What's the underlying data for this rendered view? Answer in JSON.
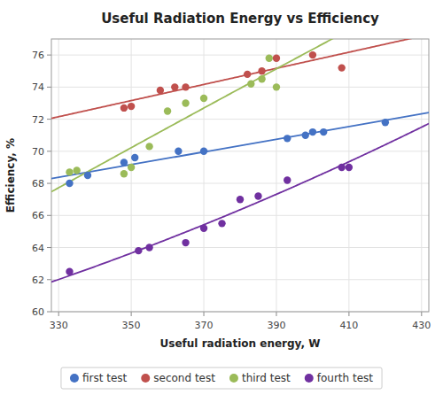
{
  "chart_data": {
    "type": "scatter",
    "title": "Useful Radiation Energy vs Efficiency",
    "x_label": "Useful radiation energy, W",
    "y_label": "Efficiency, %",
    "xlim": [
      328,
      432
    ],
    "ylim": [
      60,
      77
    ],
    "xticks": [
      330,
      350,
      370,
      390,
      410,
      430
    ],
    "yticks": [
      60,
      62,
      64,
      66,
      68,
      70,
      72,
      74,
      76
    ],
    "grid": true,
    "legend": "bottom",
    "series": [
      {
        "name": "first test",
        "color": "#4472c4",
        "x": [
          333,
          338,
          348,
          351,
          363,
          370,
          393,
          398,
          400,
          403,
          420
        ],
        "values": [
          68.0,
          68.5,
          69.3,
          69.6,
          70.0,
          70.0,
          70.8,
          71.0,
          71.2,
          71.2,
          71.8
        ],
        "trendline": {
          "degree": 1,
          "coefficients": [
            0.039493,
            55.3462
          ]
        }
      },
      {
        "name": "second test",
        "color": "#c0504d",
        "x": [
          348,
          350,
          358,
          362,
          365,
          382,
          386,
          390,
          400,
          408
        ],
        "values": [
          72.7,
          72.8,
          73.8,
          74.0,
          74.0,
          74.8,
          75.0,
          75.8,
          76.0,
          75.2
        ],
        "trendline": {
          "degree": 1,
          "coefficients": [
            0.050265,
            55.56565
          ]
        }
      },
      {
        "name": "third test",
        "color": "#9bbb59",
        "x": [
          333,
          335,
          348,
          350,
          355,
          360,
          365,
          370,
          383,
          386,
          388,
          390
        ],
        "values": [
          68.7,
          68.8,
          68.6,
          69.0,
          70.3,
          72.5,
          73.0,
          73.3,
          74.2,
          74.5,
          75.8,
          74.0
        ],
        "trendline": {
          "degree": 2,
          "coefficients": [
            -3.10166e-05,
            0.1458755,
            22.965543
          ]
        }
      },
      {
        "name": "fourth test",
        "color": "#7030a0",
        "x": [
          333,
          352,
          355,
          365,
          370,
          375,
          380,
          385,
          393,
          408,
          410
        ],
        "values": [
          62.5,
          63.8,
          64.0,
          64.3,
          65.2,
          65.5,
          67.0,
          67.2,
          68.2,
          69.0,
          69.0
        ],
        "trendline": {
          "degree": 2,
          "coefficients": [
            0.0001609349,
            -0.027373,
            53.516005
          ]
        }
      }
    ]
  }
}
